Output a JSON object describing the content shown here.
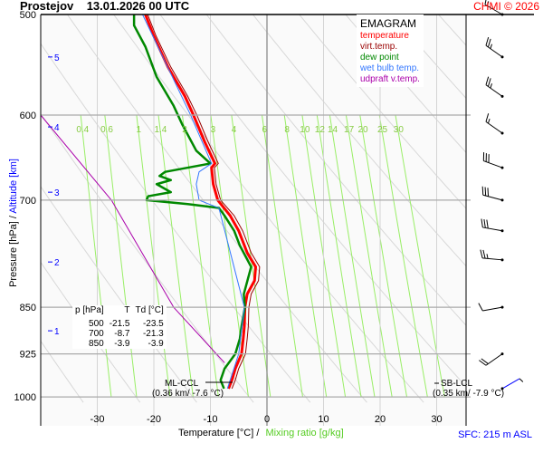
{
  "header": {
    "title": "Prostejov    13.01.2026 00 UTC",
    "credit": "CHMI © 2026"
  },
  "legend": {
    "title": "EMAGRAM",
    "items": [
      {
        "label": "temperature",
        "color": "#ff0000"
      },
      {
        "label": "virt.temp.",
        "color": "#990000"
      },
      {
        "label": "dew point",
        "color": "#008800"
      },
      {
        "label": "wet bulb temp.",
        "color": "#3377ff"
      },
      {
        "label": "udpraft v.temp.",
        "color": "#aa00aa"
      }
    ]
  },
  "table": {
    "headers": [
      "p [hPa]",
      "T",
      "Td [°C]"
    ],
    "rows": [
      [
        "500",
        "-21.5",
        "-23.5"
      ],
      [
        "700",
        "-8.7",
        "-21.3"
      ],
      [
        "850",
        "-3.9",
        "-3.9"
      ]
    ]
  },
  "annotations": {
    "ml_ccl": "ML-CCL",
    "ml_ccl_val": "(0.36 km/ -7.6 °C)",
    "sb_lcl": "SB-LCL",
    "sb_lcl_val": "(0.35 km/ -7.9 °C)",
    "sfc": "SFC: 215 m ASL"
  },
  "axes": {
    "ylabel_pressure": "Pressure [hPa]  /",
    "ylabel_alt": "Altitude [km]",
    "xlabel_temp": "Temperature [°C]  /",
    "xlabel_mix": "Mixing ratio [g/kg]"
  },
  "chart_data": {
    "type": "line",
    "title": "EMAGRAM",
    "xlabel": "Temperature [°C]",
    "ylabel": "Pressure [hPa]",
    "xlim": [
      -40,
      35
    ],
    "ylim": [
      1000,
      500
    ],
    "x_ticks": [
      "-30",
      "-20",
      "-10",
      "0",
      "10",
      "20",
      "30"
    ],
    "x_tick_values": [
      -30,
      -20,
      -10,
      0,
      10,
      20,
      30
    ],
    "y_ticks": [
      "500",
      "600",
      "700",
      "850",
      "925",
      "1000"
    ],
    "y_tick_values": [
      500,
      600,
      700,
      850,
      925,
      1000
    ],
    "altitude_ticks": [
      {
        "km": "5",
        "p": 540
      },
      {
        "km": "4",
        "p": 613
      },
      {
        "km": "3",
        "p": 690
      },
      {
        "km": "2",
        "p": 783
      },
      {
        "km": "1",
        "p": 887
      }
    ],
    "mixing_ratio_labels": [
      "0.4",
      "0.6",
      "1",
      "1.4",
      "2",
      "3",
      "4",
      "6",
      "8",
      "10",
      "12",
      "14",
      "17",
      "20",
      "25",
      "30"
    ],
    "mixing_ratio_values": [
      0.4,
      0.6,
      1,
      1.4,
      2,
      3,
      4,
      6,
      8,
      10,
      12,
      14,
      17,
      20,
      25,
      30
    ],
    "series": [
      {
        "name": "temperature",
        "color": "#ff0000",
        "p": [
          500,
          520,
          550,
          580,
          600,
          630,
          655,
          660,
          680,
          700,
          720,
          740,
          770,
          790,
          810,
          830,
          850,
          880,
          900,
          925,
          950,
          970,
          985
        ],
        "t": [
          -21.5,
          -20,
          -17.5,
          -14.5,
          -13,
          -11,
          -9.2,
          -9.8,
          -9.5,
          -8.7,
          -6.5,
          -5,
          -3.5,
          -2,
          -2.2,
          -3.5,
          -3.9,
          -4,
          -4.2,
          -4.5,
          -5.6,
          -6.2,
          -6.8
        ]
      },
      {
        "name": "virt.temp.",
        "color": "#990000",
        "p": [
          500,
          520,
          550,
          580,
          600,
          630,
          655,
          660,
          680,
          700,
          720,
          740,
          770,
          790,
          810,
          830,
          850,
          880,
          900,
          925,
          950,
          970,
          985
        ],
        "t": [
          -21.1,
          -19.6,
          -17,
          -14,
          -12.4,
          -10.4,
          -8.6,
          -9.3,
          -9,
          -8.2,
          -5.8,
          -4.3,
          -2.8,
          -1.3,
          -1.5,
          -2.8,
          -3.2,
          -3.3,
          -3.5,
          -3.8,
          -5,
          -5.6,
          -6.2
        ]
      },
      {
        "name": "dew point",
        "color": "#008800",
        "p": [
          500,
          510,
          530,
          560,
          590,
          610,
          640,
          655,
          660,
          665,
          670,
          675,
          680,
          690,
          695,
          700,
          705,
          710,
          720,
          740,
          760,
          790,
          830,
          850,
          880,
          900,
          925,
          950,
          970,
          985
        ],
        "t": [
          -23.5,
          -23.5,
          -21.5,
          -19.5,
          -16.5,
          -15,
          -12.5,
          -10,
          -14,
          -18,
          -19,
          -17,
          -19.5,
          -17,
          -21,
          -21.3,
          -14,
          -8.5,
          -7.5,
          -5.8,
          -4.8,
          -2.8,
          -4.1,
          -3.9,
          -4.5,
          -4.8,
          -5.6,
          -7.5,
          -8.2,
          -7.6
        ]
      },
      {
        "name": "wet bulb temp.",
        "color": "#3377ff",
        "p": [
          500,
          600,
          655,
          665,
          680,
          700,
          710,
          850,
          925,
          985
        ],
        "t": [
          -22,
          -13.5,
          -9.8,
          -12,
          -12.5,
          -12,
          -8.5,
          -4,
          -5,
          -7
        ]
      },
      {
        "name": "udpraft v.temp.",
        "color": "#aa00aa",
        "p": [
          600,
          700,
          850,
          940
        ],
        "t": [
          -40,
          -27.5,
          -16.5,
          -7.5
        ]
      }
    ],
    "wind_barbs": [
      {
        "p": 500,
        "dir": 300,
        "kt": 15
      },
      {
        "p": 540,
        "dir": 305,
        "kt": 25
      },
      {
        "p": 580,
        "dir": 305,
        "kt": 25
      },
      {
        "p": 620,
        "dir": 305,
        "kt": 15
      },
      {
        "p": 660,
        "dir": 290,
        "kt": 30
      },
      {
        "p": 700,
        "dir": 285,
        "kt": 30
      },
      {
        "p": 740,
        "dir": 280,
        "kt": 30
      },
      {
        "p": 780,
        "dir": 275,
        "kt": 25
      },
      {
        "p": 850,
        "dir": 260,
        "kt": 10
      },
      {
        "p": 925,
        "dir": 235,
        "kt": 20
      },
      {
        "p": 985,
        "dir": 60,
        "kt": 5
      }
    ]
  }
}
